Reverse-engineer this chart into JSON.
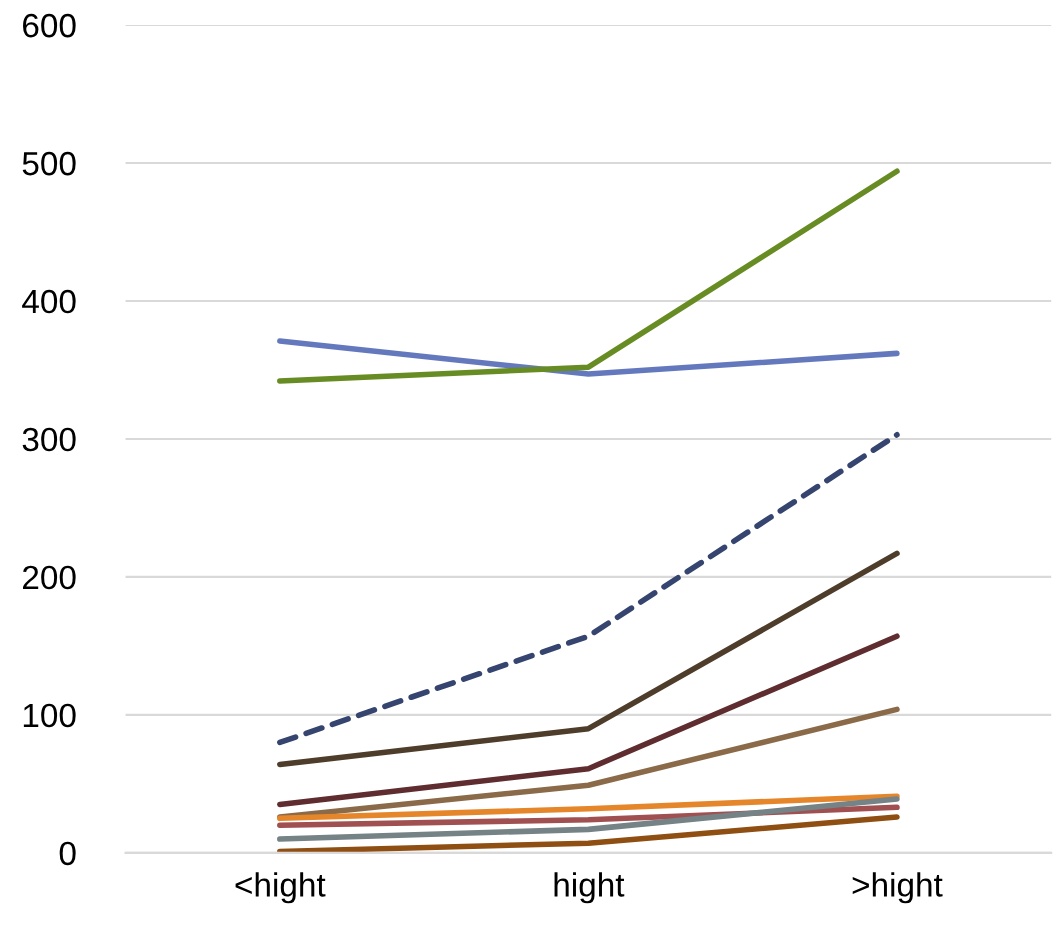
{
  "chart_data": {
    "type": "line",
    "categories": [
      "<hight",
      "hight",
      ">hight"
    ],
    "ylim": [
      0,
      600
    ],
    "yticks": [
      0,
      100,
      200,
      300,
      400,
      500,
      600
    ],
    "grid": "y",
    "marker": "none",
    "series": [
      {
        "color": "#6479bd",
        "values": [
          371,
          347,
          362
        ]
      },
      {
        "color": "#688c24",
        "values": [
          342,
          352,
          494
        ]
      },
      {
        "color": "#35456f",
        "values": [
          80,
          157,
          303
        ],
        "line_style": "dashed"
      },
      {
        "color": "#4e3d2a",
        "values": [
          64,
          90,
          217
        ]
      },
      {
        "color": "#5f2d2f",
        "values": [
          35,
          61,
          157
        ]
      },
      {
        "color": "#8a6a48",
        "values": [
          26,
          49,
          104
        ]
      },
      {
        "color": "#e5862a",
        "values": [
          25,
          32,
          41
        ]
      },
      {
        "color": "#a05050",
        "values": [
          20,
          24,
          33
        ]
      },
      {
        "color": "#758286",
        "values": [
          10,
          17,
          39
        ]
      },
      {
        "color": "#8f4e12",
        "values": [
          1,
          7,
          26
        ]
      }
    ]
  }
}
